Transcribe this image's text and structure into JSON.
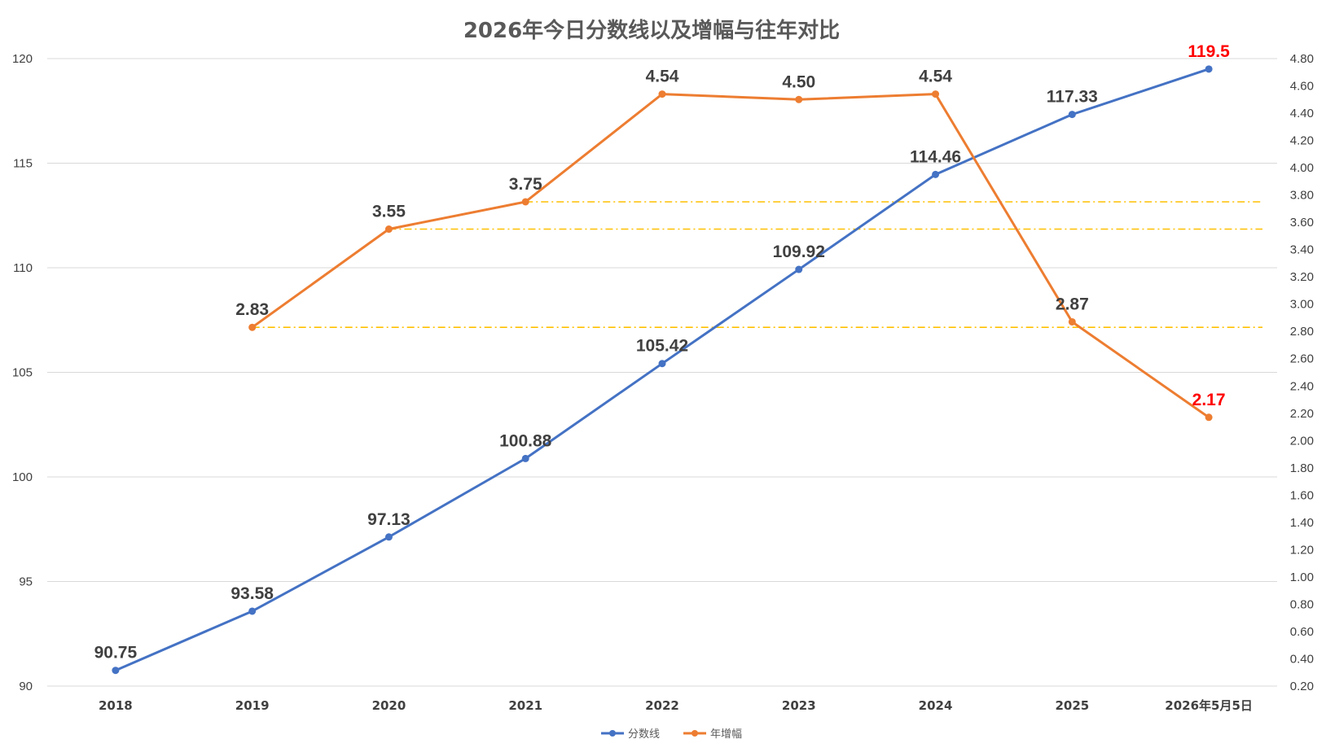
{
  "chart_data": {
    "type": "line",
    "title": "2026年今日分数线以及增幅与往年对比",
    "categories": [
      "2018",
      "2019",
      "2020",
      "2021",
      "2022",
      "2023",
      "2024",
      "2025",
      "2026年5月5日"
    ],
    "y_left": {
      "range": [
        90,
        120
      ],
      "ticks": [
        "90",
        "95",
        "100",
        "105",
        "110",
        "115",
        "120"
      ]
    },
    "y_right": {
      "range": [
        0.2,
        4.8
      ],
      "ticks": [
        "0.20",
        "0.40",
        "0.60",
        "0.80",
        "1.00",
        "1.20",
        "1.40",
        "1.60",
        "1.80",
        "2.00",
        "2.20",
        "2.40",
        "2.60",
        "2.80",
        "3.00",
        "3.20",
        "3.40",
        "3.60",
        "3.80",
        "4.00",
        "4.20",
        "4.40",
        "4.60",
        "4.80"
      ]
    },
    "series": [
      {
        "name": "分数线",
        "axis": "left",
        "color": "#4472C4",
        "values": [
          90.75,
          93.58,
          97.13,
          100.88,
          105.42,
          109.92,
          114.46,
          117.33,
          119.5
        ],
        "labels": [
          "90.75",
          "93.58",
          "97.13",
          "100.88",
          "105.42",
          "109.92",
          "114.46",
          "117.33",
          "119.5"
        ],
        "highlight_color": "#FF0000",
        "highlight_index": 8
      },
      {
        "name": "年增幅",
        "axis": "right",
        "color": "#ED7D31",
        "values": [
          null,
          2.83,
          3.55,
          3.75,
          4.54,
          4.5,
          4.54,
          2.87,
          2.17
        ],
        "labels": [
          "",
          "2.83",
          "3.55",
          "3.75",
          "4.54",
          "4.50",
          "4.54",
          "2.87",
          "2.17"
        ],
        "highlight_color": "#FF0000",
        "highlight_index": 8
      }
    ],
    "reference_lines": {
      "axis": "right",
      "color": "#FFC000",
      "lines": [
        {
          "value": 3.75,
          "from_index": 3
        },
        {
          "value": 3.55,
          "from_index": 2
        },
        {
          "value": 2.83,
          "from_index": 1
        }
      ]
    },
    "grid": true,
    "legend_position": "bottom-center"
  }
}
